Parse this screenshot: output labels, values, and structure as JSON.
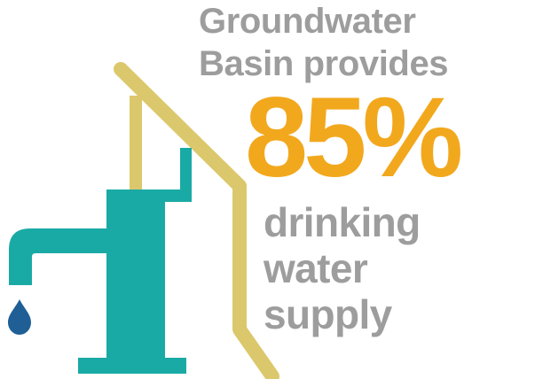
{
  "headline": {
    "line1": "Groundwater",
    "line2": "Basin provides"
  },
  "stat": {
    "value": "85%"
  },
  "subtext": {
    "line1": "drinking",
    "line2": "water",
    "line3": "supply"
  },
  "icons": {
    "pump": "water-pump-icon",
    "drop": "water-drop-icon"
  },
  "colors": {
    "gray_text": "#9d9d9d",
    "orange": "#f2a81d",
    "teal": "#1aaaa5",
    "gold": "#dcc86c",
    "blue_drop": "#1f5f96"
  }
}
